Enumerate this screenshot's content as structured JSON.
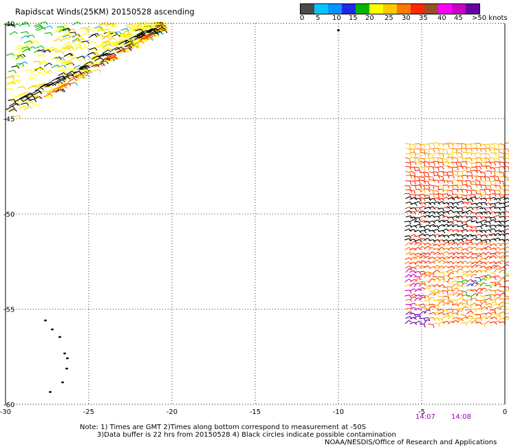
{
  "title": "Rapidscat Winds(25KM) 20150528 ascending",
  "colorbar": {
    "colors": [
      "#4a4a4a",
      "#00c8ff",
      "#0096ff",
      "#1e28e6",
      "#00b400",
      "#ffff00",
      "#ffc800",
      "#ff7800",
      "#ff2800",
      "#965028",
      "#ff00ff",
      "#c800c8",
      "#6400a0"
    ],
    "labels": [
      "0",
      "5",
      "10",
      "15",
      "20",
      "25",
      "30",
      "35",
      "40",
      "45",
      ">50 knots"
    ]
  },
  "axes": {
    "x_labels": [
      "-30",
      "-25",
      "-20",
      "-15",
      "-10",
      "-5",
      "0"
    ],
    "y_labels": [
      "-40",
      "-45",
      "-50",
      "-55",
      "-60"
    ],
    "x_range": [
      -30,
      0
    ],
    "y_range": [
      -60,
      -40
    ],
    "grid": true
  },
  "times": [
    "14:07",
    "14:08"
  ],
  "notes": {
    "line1": "Note: 1) Times are GMT 2)Times along bottom correspond to measurement at -50S",
    "line2": "3)Data buffer is 22 hrs from 20150528 4) Black circles indicate possible contamination",
    "credit": "NOAA/NESDIS/Office of Research and Applications"
  }
}
